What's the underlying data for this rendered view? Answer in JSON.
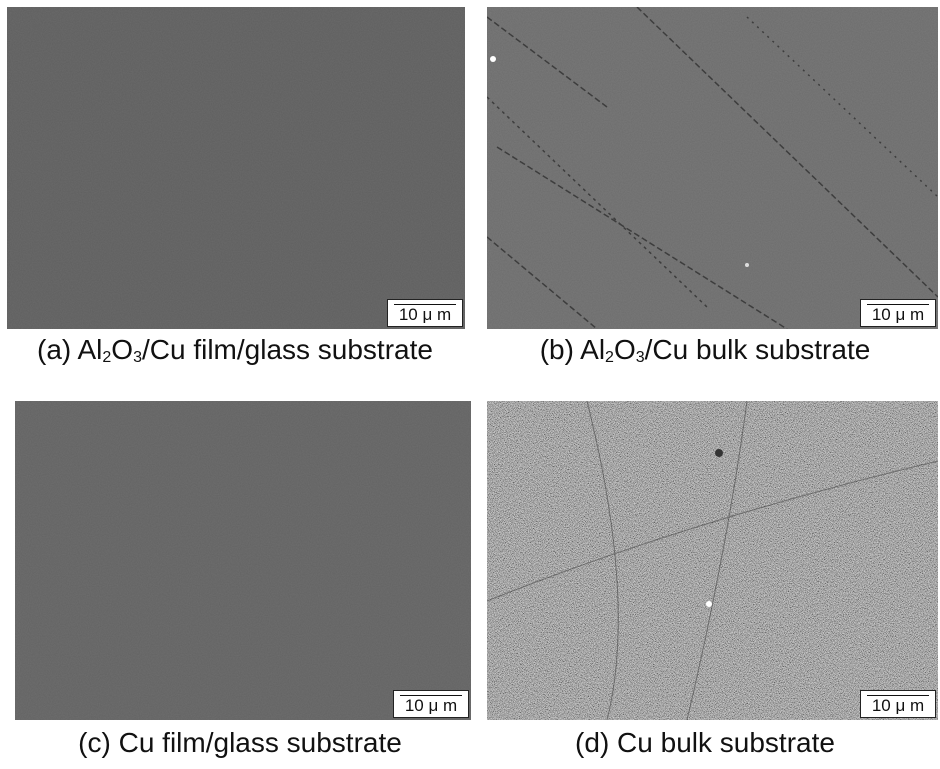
{
  "panels": [
    {
      "label_parts": [
        {
          "text": "(a) Al"
        },
        {
          "text": "2",
          "sub": true
        },
        {
          "text": "O"
        },
        {
          "text": "3",
          "sub": true
        },
        {
          "text": "/Cu film/glass substrate"
        }
      ],
      "scale_bar": "10 μ m"
    },
    {
      "label_parts": [
        {
          "text": "(b) Al"
        },
        {
          "text": "2",
          "sub": true
        },
        {
          "text": "O"
        },
        {
          "text": "3",
          "sub": true
        },
        {
          "text": "/Cu bulk substrate"
        }
      ],
      "scale_bar": "10 μ m"
    },
    {
      "label_parts": [
        {
          "text": "(c) Cu film/glass substrate"
        }
      ],
      "scale_bar": "10 μ m"
    },
    {
      "label_parts": [
        {
          "text": "(d) Cu bulk substrate"
        }
      ],
      "scale_bar": "10 μ m"
    }
  ]
}
